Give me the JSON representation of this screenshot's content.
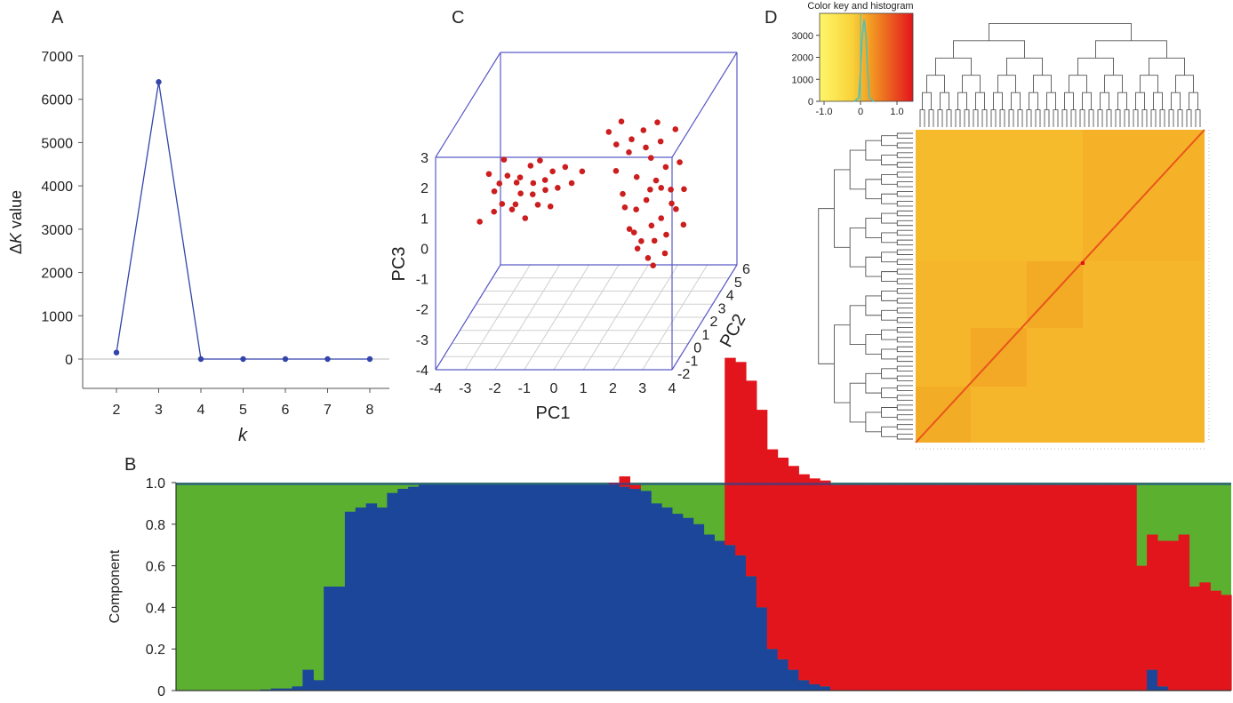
{
  "panels": {
    "a": "A",
    "b": "B",
    "c": "C",
    "d": "D"
  },
  "colors": {
    "blue_line": "#3344aa",
    "green": "#5bb030",
    "blue": "#1b469a",
    "red": "#e3151c",
    "scatter": "#cc1e1e",
    "cube": "#5a5ac8"
  },
  "chart_data": [
    {
      "panel": "A",
      "type": "line",
      "xlabel": "k",
      "ylabel_prefix": "Δ",
      "ylabel_italic": "K",
      "ylabel_suffix": " value",
      "x": [
        2,
        3,
        4,
        5,
        6,
        7,
        8
      ],
      "y": [
        150,
        6400,
        0,
        0,
        0,
        0,
        0
      ],
      "xticks": [
        "2",
        "3",
        "4",
        "5",
        "6",
        "7",
        "8"
      ],
      "yticks": [
        "0",
        "1000",
        "2000",
        "3000",
        "4000",
        "5000",
        "6000",
        "7000"
      ],
      "ylim": [
        -700,
        7000
      ],
      "grid": false
    },
    {
      "panel": "B",
      "type": "area",
      "ylabel": "Component",
      "yticks": [
        "0",
        "0.2",
        "0.4",
        "0.6",
        "0.8",
        "1.0"
      ],
      "ylim": [
        0,
        1
      ],
      "n_individuals": 100,
      "series": [
        {
          "name": "",
          "color": "green",
          "values": [
            0.99,
            0.99,
            0.99,
            0.99,
            0.99,
            0.99,
            0.99,
            0.99,
            0.99,
            0.99,
            0.99,
            0.99,
            0.99,
            0.99,
            0.99,
            0.99,
            0.99,
            0.99,
            0.99,
            0.99,
            0.99,
            0.99,
            0.99,
            0.99,
            0.99,
            0.99,
            0.99,
            0.99,
            0.99,
            0.99,
            0.99,
            0.99,
            0.99,
            0.99,
            0.99,
            0.99,
            0.99,
            0.99,
            0.99,
            0.99,
            0.99,
            0.99,
            0.99,
            0.99,
            0.99,
            0.99,
            0.99,
            0.99,
            0.99,
            0.99,
            0.99,
            0.99,
            0.99,
            0.99,
            0.99,
            0.99,
            0.99,
            0.99,
            0.99,
            0.99,
            0.99,
            0.99,
            0.99,
            0.99,
            0.99,
            0.99,
            0.99,
            0.99,
            0.99,
            0.99,
            0.99,
            0.99,
            0.99,
            0.99,
            0.99,
            0.99,
            0.99,
            0.99,
            0.99,
            0.99,
            0.99,
            0.99,
            0.99,
            0.99,
            0.99,
            0.99,
            0.99,
            0.99,
            0.99,
            0.99,
            0.99,
            0.99,
            0.99,
            0.99,
            0.99,
            0.99,
            0.99,
            0.99,
            0.99,
            0.99
          ]
        },
        {
          "name": "",
          "color": "blue",
          "values": [
            0,
            0,
            0,
            0,
            0,
            0,
            0,
            0,
            0.005,
            0.01,
            0.01,
            0.02,
            0.1,
            0.05,
            0.5,
            0.5,
            0.86,
            0.88,
            0.9,
            0.88,
            0.95,
            0.97,
            0.98,
            0.99,
            0.99,
            0.99,
            0.99,
            0.99,
            0.99,
            0.99,
            0.99,
            0.99,
            0.99,
            0.99,
            0.99,
            0.99,
            0.99,
            0.99,
            0.99,
            0.99,
            0.99,
            0.99,
            0.98,
            0.97,
            0.96,
            0.9,
            0.88,
            0.85,
            0.83,
            0.8,
            0.75,
            0.72,
            0.7,
            0.65,
            0.55,
            0.4,
            0.2,
            0.15,
            0.1,
            0.05,
            0.03,
            0.02,
            0,
            0,
            0,
            0,
            0,
            0,
            0,
            0,
            0,
            0,
            0,
            0,
            0,
            0,
            0,
            0,
            0,
            0,
            0,
            0,
            0,
            0,
            0,
            0,
            0,
            0,
            0,
            0,
            0,
            0,
            0.1,
            0.02,
            0,
            0,
            0,
            0,
            0,
            0
          ]
        },
        {
          "name": "",
          "color": "red",
          "values": [
            0,
            0,
            0,
            0,
            0,
            0,
            0,
            0,
            0,
            0,
            0,
            0,
            0,
            0,
            0,
            0,
            0,
            0,
            0,
            0,
            0,
            0,
            0,
            0,
            0,
            0,
            0,
            0,
            0,
            0,
            0,
            0,
            0,
            0,
            0,
            0,
            0,
            0,
            0,
            0,
            0,
            0.01,
            0.05,
            0.02,
            0,
            0,
            0,
            0,
            0,
            0,
            0,
            0,
            0.9,
            0.93,
            0.94,
            0.95,
            0.96,
            0.97,
            0.98,
            0.99,
            0.99,
            0.99,
            0.99,
            0.99,
            0.99,
            0.99,
            0.99,
            0.99,
            0.99,
            0.99,
            0.99,
            0.99,
            0.99,
            0.99,
            0.99,
            0.99,
            0.99,
            0.99,
            0.99,
            0.99,
            0.99,
            0.99,
            0.99,
            0.99,
            0.99,
            0.99,
            0.99,
            0.99,
            0.99,
            0.99,
            0.99,
            0.6,
            0.65,
            0.7,
            0.72,
            0.75,
            0.5,
            0.52,
            0.48,
            0.46
          ]
        }
      ]
    },
    {
      "panel": "C",
      "type": "scatter",
      "xlabel": "PC1",
      "ylabel": "PC3",
      "zlabel": "PC2",
      "xlim": [
        -4,
        4
      ],
      "ylim": [
        -4,
        3
      ],
      "zlim": [
        -2,
        6
      ],
      "xticks": [
        "-4",
        "-3",
        "-2",
        "-1",
        "0",
        "1",
        "2",
        "3",
        "4"
      ],
      "yticks": [
        "-4",
        "-3",
        "-2",
        "-1",
        "0",
        "1",
        "2",
        "3"
      ],
      "zticks": [
        "-2",
        "-1",
        "0",
        "1",
        "2",
        "3",
        "4",
        "5",
        "6"
      ],
      "points": [
        [
          -3.0,
          0.1,
          -0.2
        ],
        [
          -2.8,
          1.5,
          0.2
        ],
        [
          -2.7,
          0.8,
          0.5
        ],
        [
          -2.6,
          0.3,
          0.1
        ],
        [
          -2.5,
          1.1,
          0.4
        ],
        [
          -2.4,
          1.8,
          0.6
        ],
        [
          -2.3,
          0.6,
          0.0
        ],
        [
          -2.2,
          1.4,
          0.3
        ],
        [
          -2.1,
          0.2,
          0.5
        ],
        [
          -2.0,
          1.0,
          0.7
        ],
        [
          -1.9,
          0.5,
          0.2
        ],
        [
          -1.8,
          1.3,
          0.4
        ],
        [
          -1.7,
          0.9,
          0.1
        ],
        [
          -1.6,
          0.0,
          0.3
        ],
        [
          -1.5,
          1.6,
          0.6
        ],
        [
          -1.4,
          0.7,
          0.5
        ],
        [
          -1.3,
          1.2,
          0.2
        ],
        [
          -1.2,
          0.4,
          0.4
        ],
        [
          -1.1,
          1.9,
          0.3
        ],
        [
          -1.0,
          0.8,
          0.6
        ],
        [
          -0.9,
          1.3,
          0.2
        ],
        [
          -0.8,
          0.3,
          0.5
        ],
        [
          -0.7,
          1.5,
          0.4
        ],
        [
          -0.5,
          1.0,
          0.3
        ],
        [
          -0.3,
          1.6,
          0.5
        ],
        [
          0.0,
          1.2,
          0.2
        ],
        [
          0.3,
          1.5,
          0.4
        ],
        [
          1.2,
          2.8,
          0.4
        ],
        [
          1.4,
          2.3,
          0.6
        ],
        [
          1.5,
          1.6,
          0.2
        ],
        [
          1.6,
          3.1,
          0.5
        ],
        [
          1.7,
          0.8,
          0.3
        ],
        [
          1.8,
          2.0,
          0.7
        ],
        [
          1.9,
          -0.4,
          0.4
        ],
        [
          2.0,
          2.6,
          0.3
        ],
        [
          2.1,
          0.2,
          0.5
        ],
        [
          2.2,
          1.4,
          0.2
        ],
        [
          2.3,
          -0.8,
          0.4
        ],
        [
          2.4,
          2.2,
          0.6
        ],
        [
          2.5,
          0.6,
          0.3
        ],
        [
          2.6,
          1.9,
          0.5
        ],
        [
          2.7,
          -0.2,
          0.2
        ],
        [
          2.8,
          1.2,
          0.4
        ],
        [
          2.9,
          2.4,
          0.6
        ],
        [
          3.0,
          0.0,
          0.3
        ],
        [
          3.1,
          1.6,
          0.5
        ],
        [
          3.2,
          -0.5,
          0.2
        ],
        [
          3.3,
          0.9,
          0.4
        ],
        [
          3.4,
          2.8,
          0.6
        ],
        [
          3.5,
          0.3,
          0.3
        ],
        [
          2.2,
          -1.0,
          0.3
        ],
        [
          2.5,
          -1.4,
          0.5
        ],
        [
          2.8,
          -0.7,
          0.2
        ],
        [
          3.1,
          -1.2,
          0.4
        ],
        [
          3.3,
          0.4,
          0.5
        ],
        [
          3.0,
          1.0,
          0.3
        ],
        [
          2.6,
          0.9,
          0.4
        ],
        [
          2.9,
          3.2,
          0.2
        ],
        [
          2.4,
          2.9,
          0.3
        ],
        [
          3.6,
          1.8,
          0.4
        ],
        [
          3.7,
          -0.3,
          0.5
        ],
        [
          3.8,
          1.0,
          0.2
        ],
        [
          2.0,
          -0.6,
          0.6
        ],
        [
          1.8,
          0.4,
          0.2
        ],
        [
          2.7,
          -1.6,
          0.4
        ]
      ]
    },
    {
      "panel": "D",
      "type": "heatmap",
      "key_title": "Color key and histogram",
      "key_xticks": [
        "-1.0",
        "0",
        "1.0"
      ],
      "key_yticks": [
        "0",
        "1000",
        "2000",
        "3000"
      ],
      "colorscale": [
        "#fff66a",
        "#f6bc25",
        "#e3151c"
      ],
      "n": 100
    }
  ]
}
